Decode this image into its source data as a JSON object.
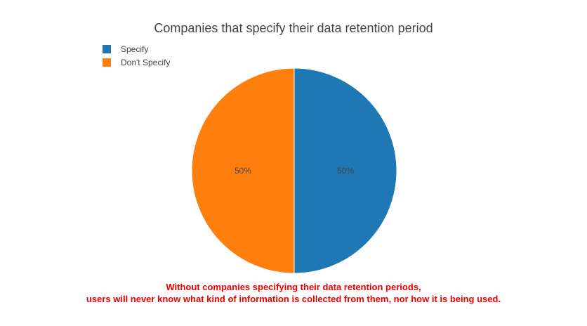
{
  "chart_data": {
    "type": "pie",
    "title": "Companies that specify their data retention period",
    "categories": [
      "Specify",
      "Don't Specify"
    ],
    "values": [
      50,
      50
    ],
    "labels": [
      "50%",
      "50%"
    ],
    "colors": [
      "#1f77b4",
      "#ff7f0e"
    ],
    "legend_position": "top-left"
  },
  "annotation": {
    "line1": "Without companies specifying their data retention periods,",
    "line2": "users will never know what kind of information is collected from them, nor how it is being used."
  }
}
